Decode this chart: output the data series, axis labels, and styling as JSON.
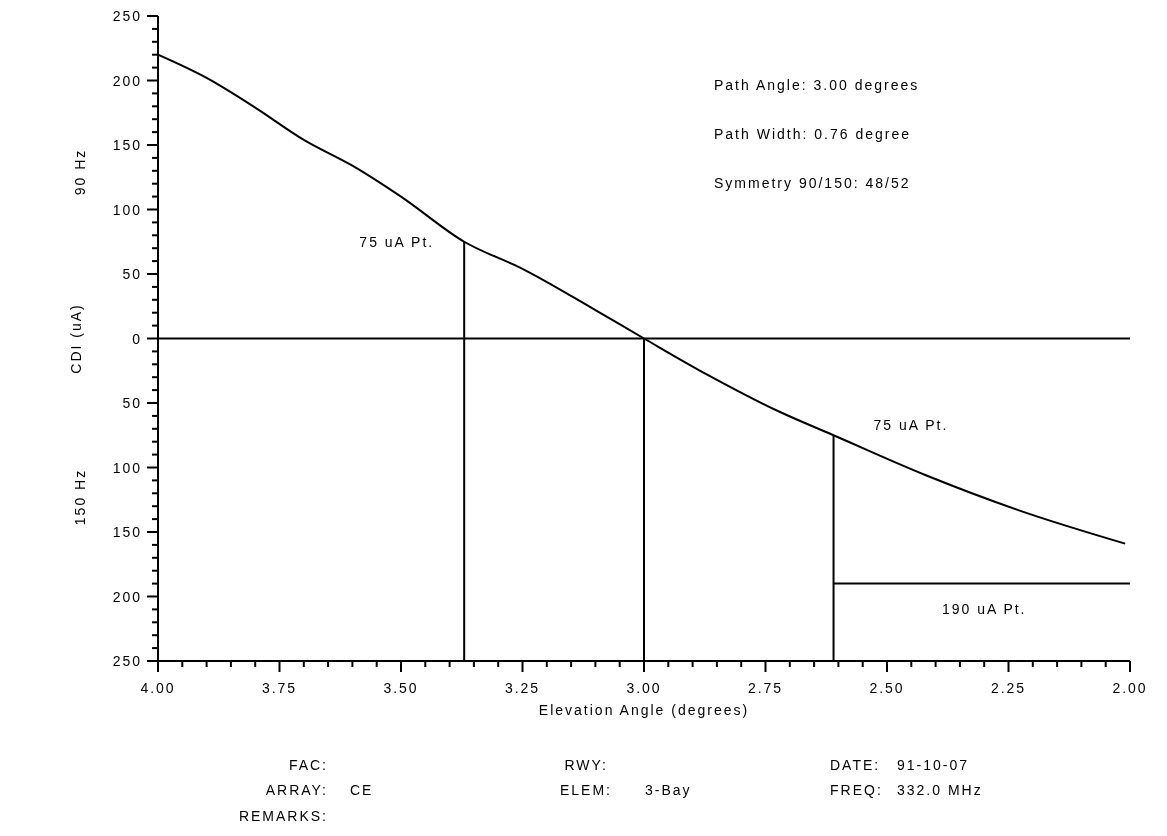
{
  "chart_data": {
    "type": "line",
    "xlabel": "Elevation Angle (degrees)",
    "ylabel": "CDI (uA)",
    "xlim": [
      4,
      2
    ],
    "ylim": [
      -250,
      250
    ],
    "xticks": [
      {
        "value": 4,
        "label": "4.00"
      },
      {
        "value": 3.95,
        "label": null
      },
      {
        "value": 3.9,
        "label": null
      },
      {
        "value": 3.85,
        "label": null
      },
      {
        "value": 3.8,
        "label": null
      },
      {
        "value": 3.75,
        "label": "3.75"
      },
      {
        "value": 3.7,
        "label": null
      },
      {
        "value": 3.65,
        "label": null
      },
      {
        "value": 3.6,
        "label": null
      },
      {
        "value": 3.55,
        "label": null
      },
      {
        "value": 3.5,
        "label": "3.50"
      },
      {
        "value": 3.45,
        "label": null
      },
      {
        "value": 3.4,
        "label": null
      },
      {
        "value": 3.35,
        "label": null
      },
      {
        "value": 3.3,
        "label": null
      },
      {
        "value": 3.25,
        "label": "3.25"
      },
      {
        "value": 3.2,
        "label": null
      },
      {
        "value": 3.15,
        "label": null
      },
      {
        "value": 3.1,
        "label": null
      },
      {
        "value": 3.05,
        "label": null
      },
      {
        "value": 3,
        "label": "3.00"
      },
      {
        "value": 2.95,
        "label": null
      },
      {
        "value": 2.9,
        "label": null
      },
      {
        "value": 2.85,
        "label": null
      },
      {
        "value": 2.8,
        "label": null
      },
      {
        "value": 2.75,
        "label": "2.75"
      },
      {
        "value": 2.7,
        "label": null
      },
      {
        "value": 2.65,
        "label": null
      },
      {
        "value": 2.6,
        "label": null
      },
      {
        "value": 2.55,
        "label": null
      },
      {
        "value": 2.5,
        "label": "2.50"
      },
      {
        "value": 2.45,
        "label": null
      },
      {
        "value": 2.4,
        "label": null
      },
      {
        "value": 2.35,
        "label": null
      },
      {
        "value": 2.3,
        "label": null
      },
      {
        "value": 2.25,
        "label": "2.25"
      },
      {
        "value": 2.2,
        "label": null
      },
      {
        "value": 2.15,
        "label": null
      },
      {
        "value": 2.1,
        "label": null
      },
      {
        "value": 2.05,
        "label": null
      },
      {
        "value": 2,
        "label": "2.00"
      }
    ],
    "yticks": [
      {
        "value": -250,
        "label": "250"
      },
      {
        "value": -240,
        "label": null
      },
      {
        "value": -230,
        "label": null
      },
      {
        "value": -220,
        "label": null
      },
      {
        "value": -210,
        "label": null
      },
      {
        "value": -200,
        "label": "200"
      },
      {
        "value": -190,
        "label": null
      },
      {
        "value": -180,
        "label": null
      },
      {
        "value": -170,
        "label": null
      },
      {
        "value": -160,
        "label": null
      },
      {
        "value": -150,
        "label": "150"
      },
      {
        "value": -140,
        "label": null
      },
      {
        "value": -130,
        "label": null
      },
      {
        "value": -120,
        "label": null
      },
      {
        "value": -110,
        "label": null
      },
      {
        "value": -100,
        "label": "100"
      },
      {
        "value": -90,
        "label": null
      },
      {
        "value": -80,
        "label": null
      },
      {
        "value": -70,
        "label": null
      },
      {
        "value": -60,
        "label": null
      },
      {
        "value": -50,
        "label": "50"
      },
      {
        "value": -40,
        "label": null
      },
      {
        "value": -30,
        "label": null
      },
      {
        "value": -20,
        "label": null
      },
      {
        "value": -10,
        "label": null
      },
      0,
      {
        "value": 10,
        "label": null
      },
      {
        "value": 20,
        "label": null
      },
      {
        "value": 30,
        "label": null
      },
      {
        "value": 40,
        "label": null
      },
      50,
      {
        "value": 60,
        "label": null
      },
      {
        "value": 70,
        "label": null
      },
      {
        "value": 80,
        "label": null
      },
      {
        "value": 90,
        "label": null
      },
      100,
      {
        "value": 110,
        "label": null
      },
      {
        "value": 120,
        "label": null
      },
      {
        "value": 130,
        "label": null
      },
      {
        "value": 140,
        "label": null
      },
      150,
      {
        "value": 160,
        "label": null
      },
      {
        "value": 170,
        "label": null
      },
      {
        "value": 180,
        "label": null
      },
      {
        "value": 190,
        "label": null
      },
      200,
      {
        "value": 210,
        "label": null
      },
      {
        "value": 220,
        "label": null
      },
      {
        "value": 230,
        "label": null
      },
      {
        "value": 240,
        "label": null
      },
      250
    ],
    "series": [
      {
        "color": "#000000",
        "x": [
          4.0,
          3.9,
          3.8,
          3.7,
          3.6,
          3.5,
          3.37,
          3.25,
          3.1,
          3.0,
          2.87,
          2.72,
          2.61,
          2.42,
          2.23,
          2.01
        ],
        "values": [
          220,
          202,
          179,
          154,
          134,
          110,
          75,
          54,
          22,
          0,
          -28,
          -57,
          -75,
          -106,
          -133,
          -159
        ]
      },
      {
        "color": "#000000",
        "x": [
          3.37,
          3.37
        ],
        "values": [
          -250,
          75
        ]
      },
      {
        "color": "#000000",
        "x": [
          3.0,
          3.0
        ],
        "values": [
          -250,
          0
        ]
      },
      {
        "color": "#000000",
        "x": [
          2.61,
          2.61
        ],
        "values": [
          -250,
          -75
        ]
      },
      {
        "color": "#000000",
        "x": [
          2.61,
          2.0
        ],
        "values": [
          -190,
          -190
        ]
      }
    ],
    "ref_lines": [
      {
        "axis": "y",
        "value": 0,
        "color": "#000000"
      }
    ],
    "marker": "none",
    "line_style": "solid",
    "annotations": [
      "Path Angle: 3.00 degrees",
      "Path Width: 0.76 degree",
      "Symmetry 90/150: 48/52",
      {
        "text": "75 uA Pt.",
        "x": 3.37,
        "y": 75
      },
      {
        "text": "75 uA Pt.",
        "x": 2.61,
        "y": -75
      },
      {
        "text": "190 uA Pt.",
        "x": 2.3,
        "y": -190
      },
      "90 Hz",
      "150 Hz",
      "FAC:",
      "RWY:",
      "DATE:",
      "91-10-07",
      "ARRAY:",
      "CE",
      "ELEM:",
      "3-Bay",
      "FREQ:",
      "332.0 MHz",
      "REMARKS:"
    ]
  }
}
